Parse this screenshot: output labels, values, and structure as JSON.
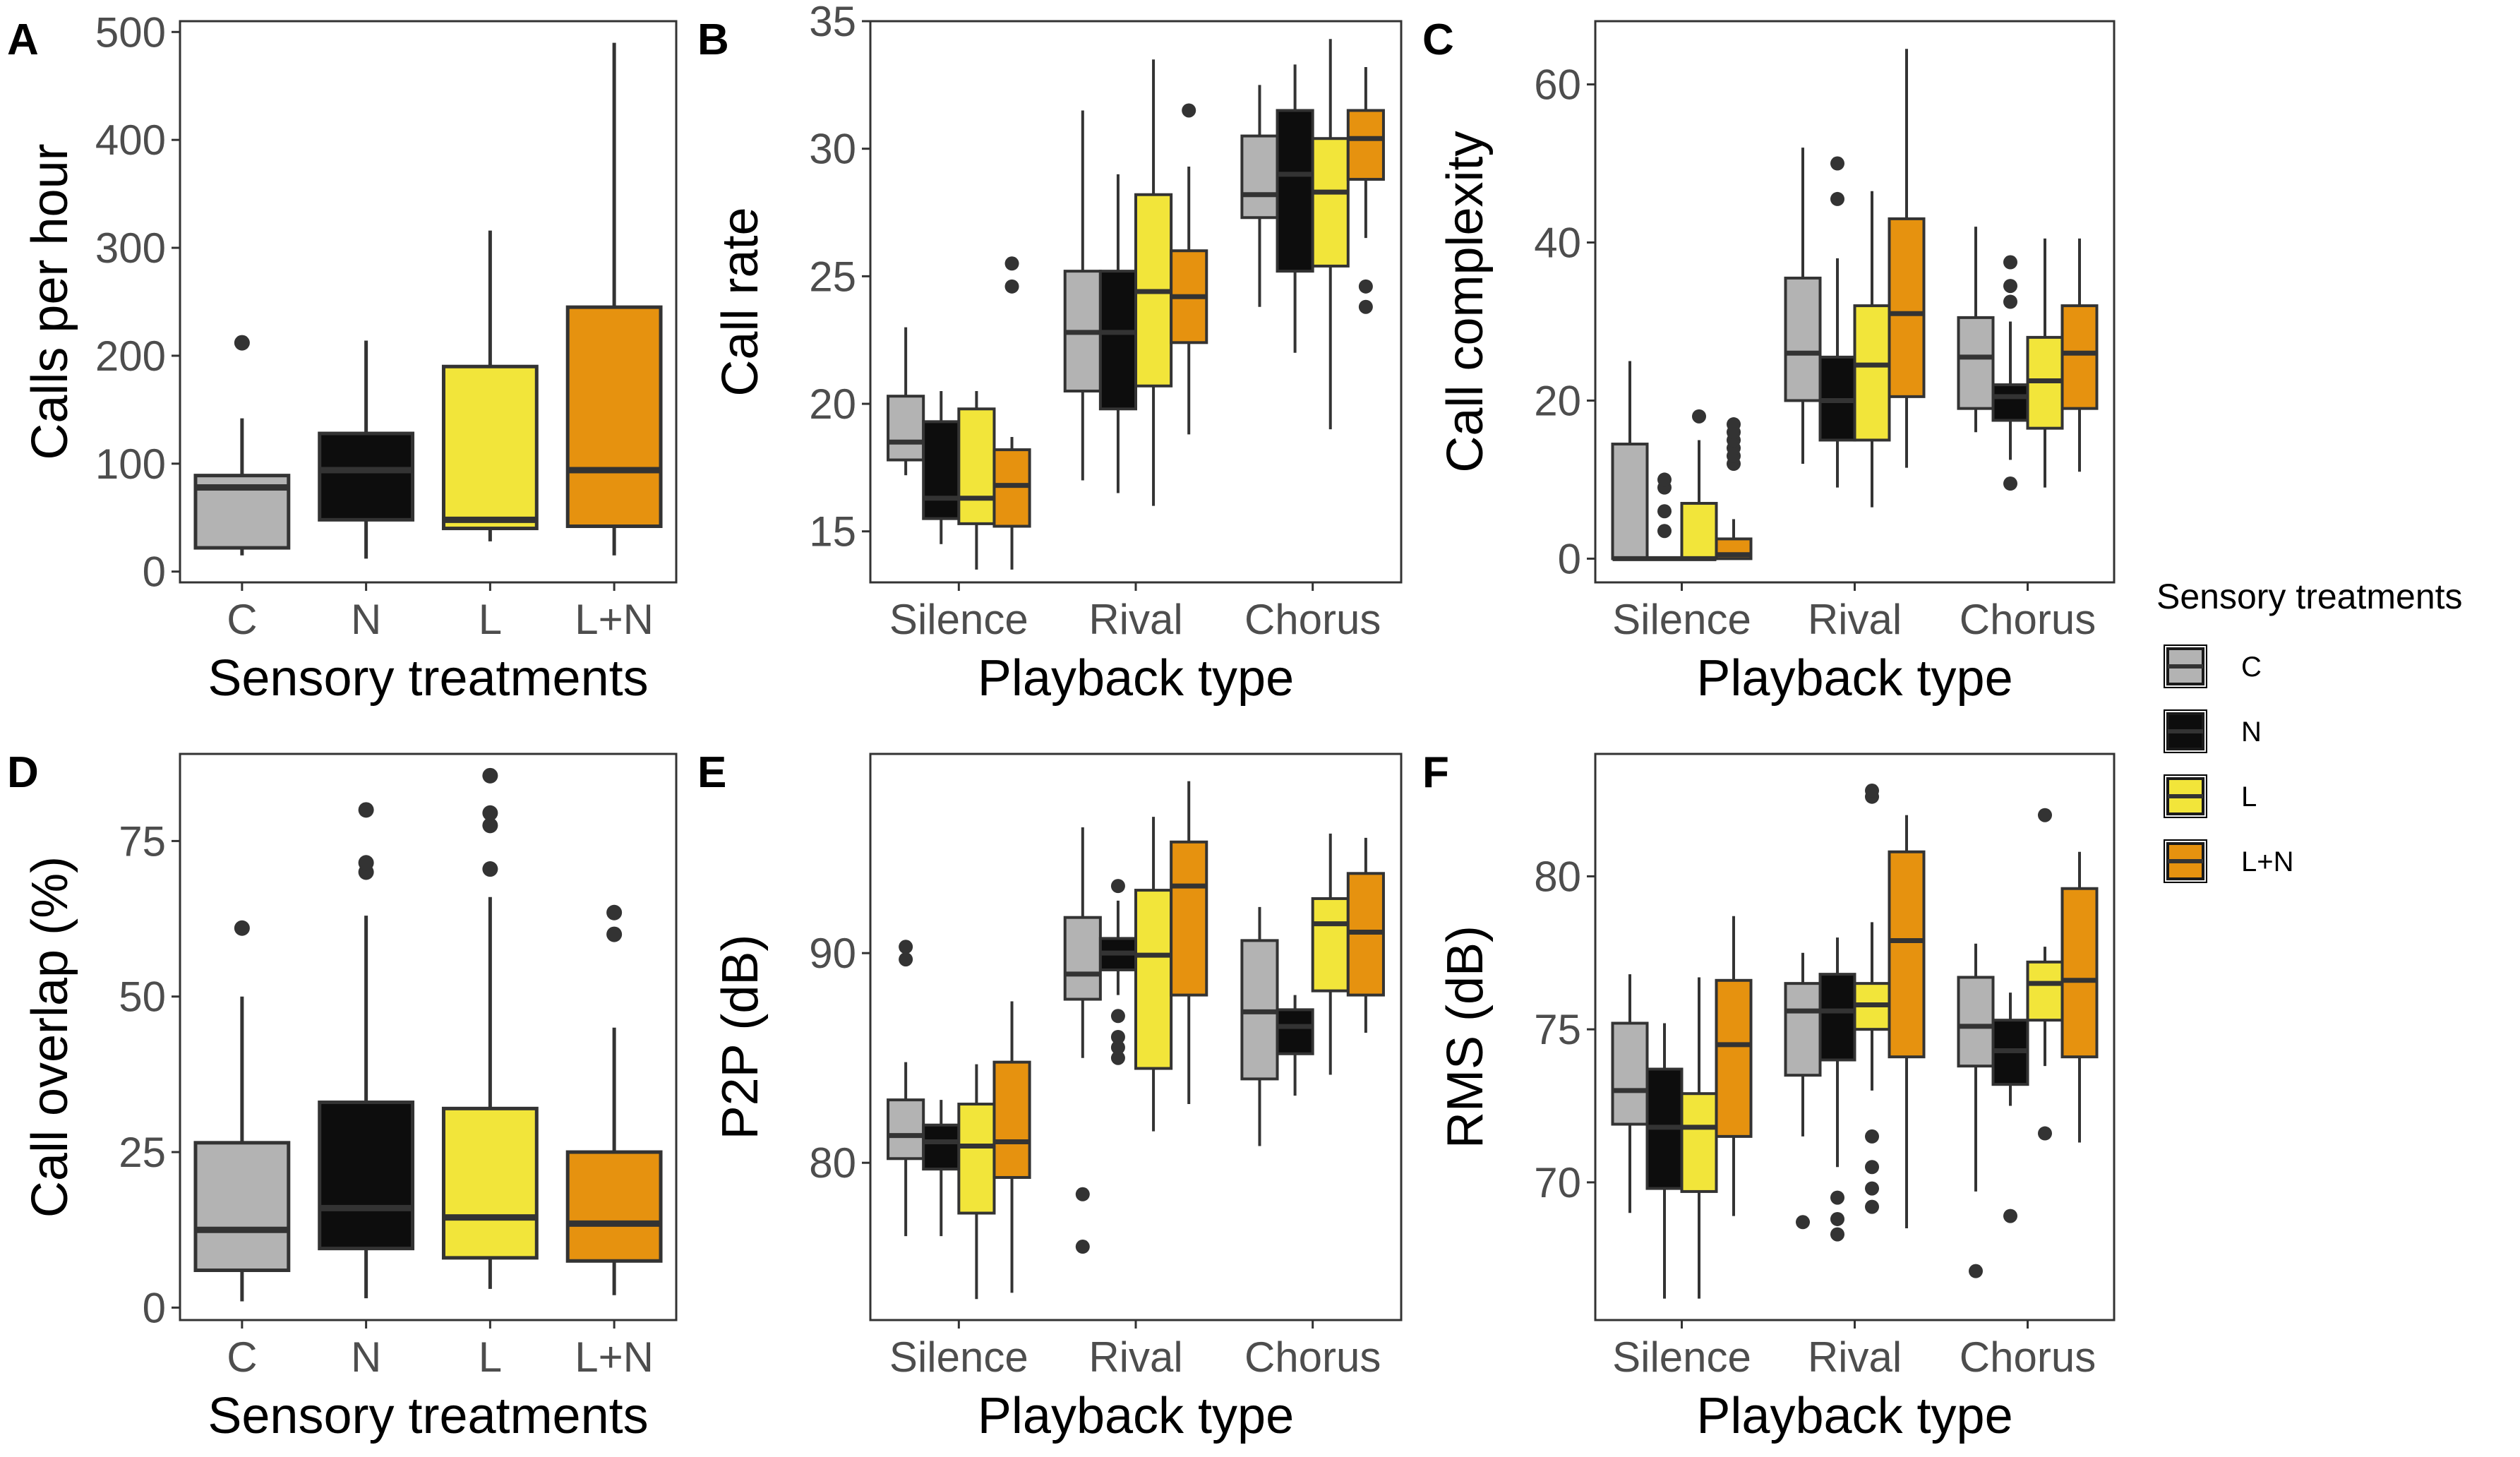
{
  "legend": {
    "title": "Sensory treatments",
    "items": [
      {
        "key": "C",
        "label": "C",
        "color": "#b3b3b3"
      },
      {
        "key": "N",
        "label": "N",
        "color": "#0d0d0d"
      },
      {
        "key": "L",
        "label": "L",
        "color": "#f2e53a"
      },
      {
        "key": "L+N",
        "label": "L+N",
        "color": "#e6920f"
      }
    ]
  },
  "chart_data": [
    {
      "id": "A",
      "panel_label": "A",
      "type": "boxplot",
      "xlabel": "Sensory treatments",
      "ylabel": "Calls per hour",
      "ylim": [
        -10,
        510
      ],
      "yticks": [
        0,
        100,
        200,
        300,
        400,
        500
      ],
      "categories": [
        "C",
        "N",
        "L",
        "L+N"
      ],
      "boxes": [
        {
          "category": "C",
          "treatment": "C",
          "min": 15,
          "q1": 22,
          "median": 78,
          "q3": 89,
          "max": 142,
          "outliers": [
            212
          ]
        },
        {
          "category": "N",
          "treatment": "N",
          "min": 12,
          "q1": 48,
          "median": 94,
          "q3": 128,
          "max": 214,
          "outliers": []
        },
        {
          "category": "L",
          "treatment": "L",
          "min": 28,
          "q1": 40,
          "median": 48,
          "q3": 190,
          "max": 316,
          "outliers": []
        },
        {
          "category": "L+N",
          "treatment": "L+N",
          "min": 15,
          "q1": 42,
          "median": 94,
          "q3": 245,
          "max": 490,
          "outliers": []
        }
      ]
    },
    {
      "id": "B",
      "panel_label": "B",
      "type": "boxplot",
      "xlabel": "Playback type",
      "ylabel": "Call rate",
      "ylim": [
        13,
        35
      ],
      "yticks": [
        15,
        20,
        25,
        30,
        35
      ],
      "categories": [
        "Silence",
        "Rival",
        "Chorus"
      ],
      "boxes": [
        {
          "category": "Silence",
          "treatment": "C",
          "min": 17.2,
          "q1": 17.8,
          "median": 18.5,
          "q3": 20.3,
          "max": 23.0,
          "outliers": []
        },
        {
          "category": "Silence",
          "treatment": "N",
          "min": 14.5,
          "q1": 15.5,
          "median": 16.3,
          "q3": 19.3,
          "max": 20.5,
          "outliers": []
        },
        {
          "category": "Silence",
          "treatment": "L",
          "min": 13.5,
          "q1": 15.3,
          "median": 16.3,
          "q3": 19.8,
          "max": 20.5,
          "outliers": []
        },
        {
          "category": "Silence",
          "treatment": "L+N",
          "min": 13.5,
          "q1": 15.2,
          "median": 16.8,
          "q3": 18.2,
          "max": 18.7,
          "outliers": [
            24.6,
            25.5
          ]
        },
        {
          "category": "Rival",
          "treatment": "C",
          "min": 17.0,
          "q1": 20.5,
          "median": 22.8,
          "q3": 25.2,
          "max": 31.5,
          "outliers": []
        },
        {
          "category": "Rival",
          "treatment": "N",
          "min": 16.5,
          "q1": 19.8,
          "median": 22.8,
          "q3": 25.2,
          "max": 29.0,
          "outliers": []
        },
        {
          "category": "Rival",
          "treatment": "L",
          "min": 16.0,
          "q1": 20.7,
          "median": 24.4,
          "q3": 28.2,
          "max": 33.5,
          "outliers": []
        },
        {
          "category": "Rival",
          "treatment": "L+N",
          "min": 18.8,
          "q1": 22.4,
          "median": 24.2,
          "q3": 26.0,
          "max": 29.3,
          "outliers": [
            31.5
          ]
        },
        {
          "category": "Chorus",
          "treatment": "C",
          "min": 23.8,
          "q1": 27.3,
          "median": 28.2,
          "q3": 30.5,
          "max": 32.5,
          "outliers": []
        },
        {
          "category": "Chorus",
          "treatment": "N",
          "min": 22.0,
          "q1": 25.2,
          "median": 29.0,
          "q3": 31.5,
          "max": 33.3,
          "outliers": []
        },
        {
          "category": "Chorus",
          "treatment": "L",
          "min": 19.0,
          "q1": 25.4,
          "median": 28.3,
          "q3": 30.4,
          "max": 34.3,
          "outliers": []
        },
        {
          "category": "Chorus",
          "treatment": "L+N",
          "min": 26.5,
          "q1": 28.8,
          "median": 30.4,
          "q3": 31.5,
          "max": 33.2,
          "outliers": [
            23.8,
            24.6
          ]
        }
      ]
    },
    {
      "id": "C",
      "panel_label": "C",
      "type": "boxplot",
      "xlabel": "Playback type",
      "ylabel": "Call complexity",
      "ylim": [
        -3,
        68
      ],
      "yticks": [
        0,
        20,
        40,
        60
      ],
      "categories": [
        "Silence",
        "Rival",
        "Chorus"
      ],
      "boxes": [
        {
          "category": "Silence",
          "treatment": "C",
          "min": 0,
          "q1": 0,
          "median": 0,
          "q3": 14.5,
          "max": 25,
          "outliers": []
        },
        {
          "category": "Silence",
          "treatment": "N",
          "min": 0,
          "q1": 0,
          "median": 0,
          "q3": 0,
          "max": 0,
          "outliers": [
            3.5,
            6,
            9,
            10
          ]
        },
        {
          "category": "Silence",
          "treatment": "L",
          "min": 0,
          "q1": 0,
          "median": 0,
          "q3": 7,
          "max": 15,
          "outliers": [
            18
          ]
        },
        {
          "category": "Silence",
          "treatment": "L+N",
          "min": 0,
          "q1": 0,
          "median": 0.5,
          "q3": 2.5,
          "max": 5,
          "outliers": [
            12,
            13,
            14,
            15,
            16,
            17
          ]
        },
        {
          "category": "Rival",
          "treatment": "C",
          "min": 12,
          "q1": 20,
          "median": 26,
          "q3": 35.5,
          "max": 52,
          "outliers": []
        },
        {
          "category": "Rival",
          "treatment": "N",
          "min": 9,
          "q1": 15,
          "median": 20,
          "q3": 25.5,
          "max": 38,
          "outliers": [
            45.5,
            50
          ]
        },
        {
          "category": "Rival",
          "treatment": "L",
          "min": 6.5,
          "q1": 15,
          "median": 24.5,
          "q3": 32,
          "max": 46.5,
          "outliers": []
        },
        {
          "category": "Rival",
          "treatment": "L+N",
          "min": 11.5,
          "q1": 20.5,
          "median": 31,
          "q3": 43,
          "max": 64.5,
          "outliers": []
        },
        {
          "category": "Chorus",
          "treatment": "C",
          "min": 16,
          "q1": 19,
          "median": 25.5,
          "q3": 30.5,
          "max": 42,
          "outliers": []
        },
        {
          "category": "Chorus",
          "treatment": "N",
          "min": 12.5,
          "q1": 17.5,
          "median": 20.5,
          "q3": 22,
          "max": 30,
          "outliers": [
            9.5,
            32.5,
            34.5,
            37.5
          ]
        },
        {
          "category": "Chorus",
          "treatment": "L",
          "min": 9,
          "q1": 16.5,
          "median": 22.5,
          "q3": 28,
          "max": 40.5,
          "outliers": []
        },
        {
          "category": "Chorus",
          "treatment": "L+N",
          "min": 11,
          "q1": 19,
          "median": 26,
          "q3": 32,
          "max": 40.5,
          "outliers": []
        }
      ]
    },
    {
      "id": "D",
      "panel_label": "D",
      "type": "boxplot",
      "xlabel": "Sensory treatments",
      "ylabel": "Call overlap (%)",
      "ylim": [
        -2,
        89
      ],
      "yticks": [
        0,
        25,
        50,
        75
      ],
      "categories": [
        "C",
        "N",
        "L",
        "L+N"
      ],
      "boxes": [
        {
          "category": "C",
          "treatment": "C",
          "min": 1,
          "q1": 6,
          "median": 12.5,
          "q3": 26.5,
          "max": 50,
          "outliers": [
            61
          ]
        },
        {
          "category": "N",
          "treatment": "N",
          "min": 1.5,
          "q1": 9.5,
          "median": 16,
          "q3": 33,
          "max": 63,
          "outliers": [
            70,
            71.5,
            80
          ]
        },
        {
          "category": "L",
          "treatment": "L",
          "min": 3,
          "q1": 8,
          "median": 14.5,
          "q3": 32,
          "max": 66,
          "outliers": [
            70.5,
            77.5,
            79.5,
            85.5
          ]
        },
        {
          "category": "L+N",
          "treatment": "L+N",
          "min": 2,
          "q1": 7.5,
          "median": 13.5,
          "q3": 25,
          "max": 45,
          "outliers": [
            60,
            63.5
          ]
        }
      ]
    },
    {
      "id": "E",
      "panel_label": "E",
      "type": "boxplot",
      "xlabel": "Playback type",
      "ylabel": "P2P (dB)",
      "ylim": [
        72.5,
        99.5
      ],
      "yticks": [
        80,
        90
      ],
      "categories": [
        "Silence",
        "Rival",
        "Chorus"
      ],
      "boxes": [
        {
          "category": "Silence",
          "treatment": "C",
          "min": 76.5,
          "q1": 80.2,
          "median": 81.3,
          "q3": 83.0,
          "max": 84.8,
          "outliers": [
            89.7,
            90.3
          ]
        },
        {
          "category": "Silence",
          "treatment": "N",
          "min": 76.5,
          "q1": 79.7,
          "median": 81.0,
          "q3": 81.8,
          "max": 83.0,
          "outliers": []
        },
        {
          "category": "Silence",
          "treatment": "L",
          "min": 73.5,
          "q1": 77.6,
          "median": 80.8,
          "q3": 82.8,
          "max": 84.7,
          "outliers": []
        },
        {
          "category": "Silence",
          "treatment": "L+N",
          "min": 73.8,
          "q1": 79.3,
          "median": 81.0,
          "q3": 84.8,
          "max": 87.7,
          "outliers": []
        },
        {
          "category": "Rival",
          "treatment": "C",
          "min": 85.0,
          "q1": 87.8,
          "median": 89.0,
          "q3": 91.7,
          "max": 96.0,
          "outliers": [
            76.0,
            78.5
          ]
        },
        {
          "category": "Rival",
          "treatment": "N",
          "min": 88.0,
          "q1": 89.2,
          "median": 90.0,
          "q3": 90.7,
          "max": 92.5,
          "outliers": [
            85.0,
            85.5,
            86.0,
            87.0,
            93.2
          ]
        },
        {
          "category": "Rival",
          "treatment": "L",
          "min": 81.5,
          "q1": 84.5,
          "median": 89.9,
          "q3": 93.0,
          "max": 96.5,
          "outliers": []
        },
        {
          "category": "Rival",
          "treatment": "L+N",
          "min": 82.8,
          "q1": 88.0,
          "median": 93.2,
          "q3": 95.3,
          "max": 98.2,
          "outliers": []
        },
        {
          "category": "Chorus",
          "treatment": "C",
          "min": 80.8,
          "q1": 84.0,
          "median": 87.2,
          "q3": 90.6,
          "max": 92.2,
          "outliers": []
        },
        {
          "category": "Chorus",
          "treatment": "N",
          "min": 83.2,
          "q1": 85.2,
          "median": 86.5,
          "q3": 87.3,
          "max": 88.0,
          "outliers": []
        },
        {
          "category": "Chorus",
          "treatment": "L",
          "min": 84.2,
          "q1": 88.2,
          "median": 91.4,
          "q3": 92.6,
          "max": 95.7,
          "outliers": []
        },
        {
          "category": "Chorus",
          "treatment": "L+N",
          "min": 86.2,
          "q1": 88.0,
          "median": 91.0,
          "q3": 93.8,
          "max": 95.5,
          "outliers": []
        }
      ]
    },
    {
      "id": "F",
      "panel_label": "F",
      "type": "boxplot",
      "xlabel": "Playback type",
      "ylabel": "RMS (dB)",
      "ylim": [
        65.5,
        84
      ],
      "yticks": [
        70,
        75,
        80
      ],
      "categories": [
        "Silence",
        "Rival",
        "Chorus"
      ],
      "boxes": [
        {
          "category": "Silence",
          "treatment": "C",
          "min": 69.0,
          "q1": 71.9,
          "median": 73.0,
          "q3": 75.2,
          "max": 76.8,
          "outliers": []
        },
        {
          "category": "Silence",
          "treatment": "N",
          "min": 66.2,
          "q1": 69.8,
          "median": 71.8,
          "q3": 73.7,
          "max": 75.2,
          "outliers": []
        },
        {
          "category": "Silence",
          "treatment": "L",
          "min": 66.2,
          "q1": 69.7,
          "median": 71.8,
          "q3": 72.9,
          "max": 76.7,
          "outliers": []
        },
        {
          "category": "Silence",
          "treatment": "L+N",
          "min": 68.9,
          "q1": 71.5,
          "median": 74.5,
          "q3": 76.6,
          "max": 78.7,
          "outliers": []
        },
        {
          "category": "Rival",
          "treatment": "C",
          "min": 71.5,
          "q1": 73.5,
          "median": 75.6,
          "q3": 76.5,
          "max": 77.5,
          "outliers": [
            68.7
          ]
        },
        {
          "category": "Rival",
          "treatment": "N",
          "min": 70.5,
          "q1": 74.0,
          "median": 75.6,
          "q3": 76.8,
          "max": 78.0,
          "outliers": [
            68.3,
            68.8,
            69.5
          ]
        },
        {
          "category": "Rival",
          "treatment": "L",
          "min": 73.0,
          "q1": 75.0,
          "median": 75.8,
          "q3": 76.5,
          "max": 78.5,
          "outliers": [
            69.2,
            69.8,
            70.5,
            71.5,
            82.6,
            82.8
          ]
        },
        {
          "category": "Rival",
          "treatment": "L+N",
          "min": 68.5,
          "q1": 74.1,
          "median": 77.9,
          "q3": 80.8,
          "max": 82.0,
          "outliers": []
        },
        {
          "category": "Chorus",
          "treatment": "C",
          "min": 69.7,
          "q1": 73.8,
          "median": 75.1,
          "q3": 76.7,
          "max": 77.8,
          "outliers": [
            67.1
          ]
        },
        {
          "category": "Chorus",
          "treatment": "N",
          "min": 72.5,
          "q1": 73.2,
          "median": 74.3,
          "q3": 75.3,
          "max": 76.2,
          "outliers": [
            68.9
          ]
        },
        {
          "category": "Chorus",
          "treatment": "L",
          "min": 73.8,
          "q1": 75.3,
          "median": 76.5,
          "q3": 77.2,
          "max": 77.7,
          "outliers": [
            71.6,
            82.0
          ]
        },
        {
          "category": "Chorus",
          "treatment": "L+N",
          "min": 71.3,
          "q1": 74.1,
          "median": 76.6,
          "q3": 79.6,
          "max": 80.8,
          "outliers": []
        }
      ]
    }
  ]
}
